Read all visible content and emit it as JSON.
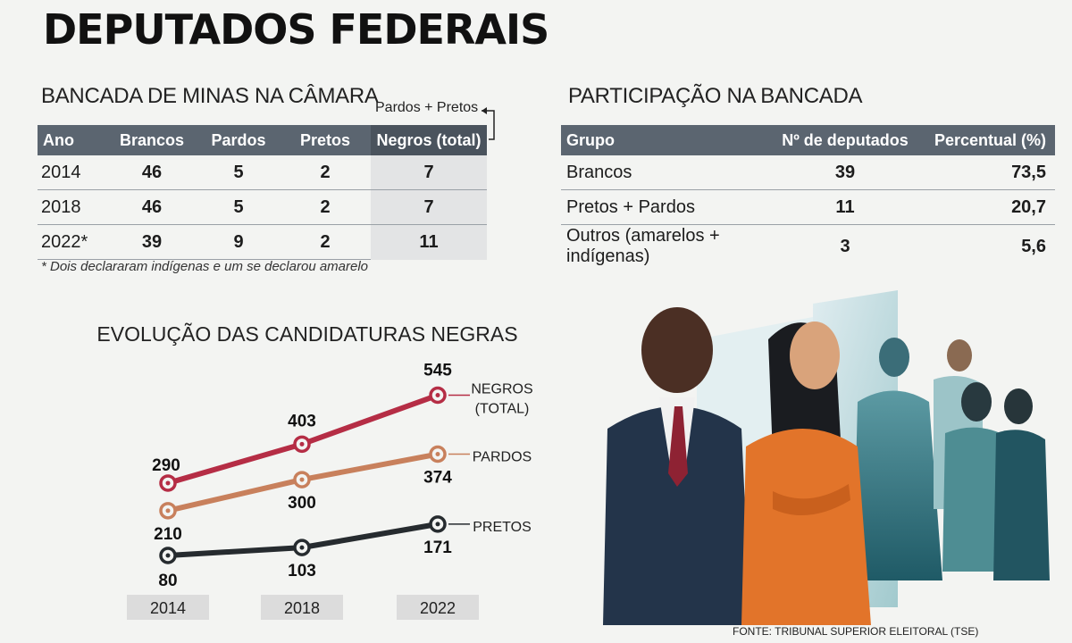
{
  "title": "DEPUTADOS FEDERAIS",
  "bancada": {
    "title": "BANCADA DE MINAS NA CÂMARA",
    "bracket_label": "Pardos + Pretos",
    "headers": [
      "Ano",
      "Brancos",
      "Pardos",
      "Pretos",
      "Negros (total)"
    ],
    "rows": [
      [
        "2014",
        "46",
        "5",
        "2",
        "7"
      ],
      [
        "2018",
        "46",
        "5",
        "2",
        "7"
      ],
      [
        "2022*",
        "39",
        "9",
        "2",
        "11"
      ]
    ],
    "note": "* Dois declararam indígenas e um se declarou amarelo"
  },
  "participacao": {
    "title": "PARTICIPAÇÃO NA BANCADA",
    "headers": [
      "Grupo",
      "Nº de deputados",
      "Percentual (%)"
    ],
    "rows": [
      [
        "Brancos",
        "39",
        "73,5"
      ],
      [
        "Pretos + Pardos",
        "11",
        "20,7"
      ],
      [
        "Outros (amarelos + indígenas)",
        "3",
        "5,6"
      ]
    ]
  },
  "chart_data": {
    "type": "line",
    "title": "EVOLUÇÃO DAS CANDIDATURAS NEGRAS",
    "categories": [
      "2014",
      "2018",
      "2022"
    ],
    "series": [
      {
        "name": "NEGROS (TOTAL)",
        "values": [
          290,
          403,
          545
        ],
        "color": "#b52d45"
      },
      {
        "name": "PARDOS",
        "values": [
          210,
          300,
          374
        ],
        "color": "#c8805c"
      },
      {
        "name": "PRETOS",
        "values": [
          80,
          103,
          171
        ],
        "color": "#262b2f"
      }
    ]
  },
  "source": "FONTE: TRIBUNAL SUPERIOR ELEITORAL (TSE)",
  "colors": {
    "header": "#5b6570",
    "highlight": "#e3e4e5"
  }
}
